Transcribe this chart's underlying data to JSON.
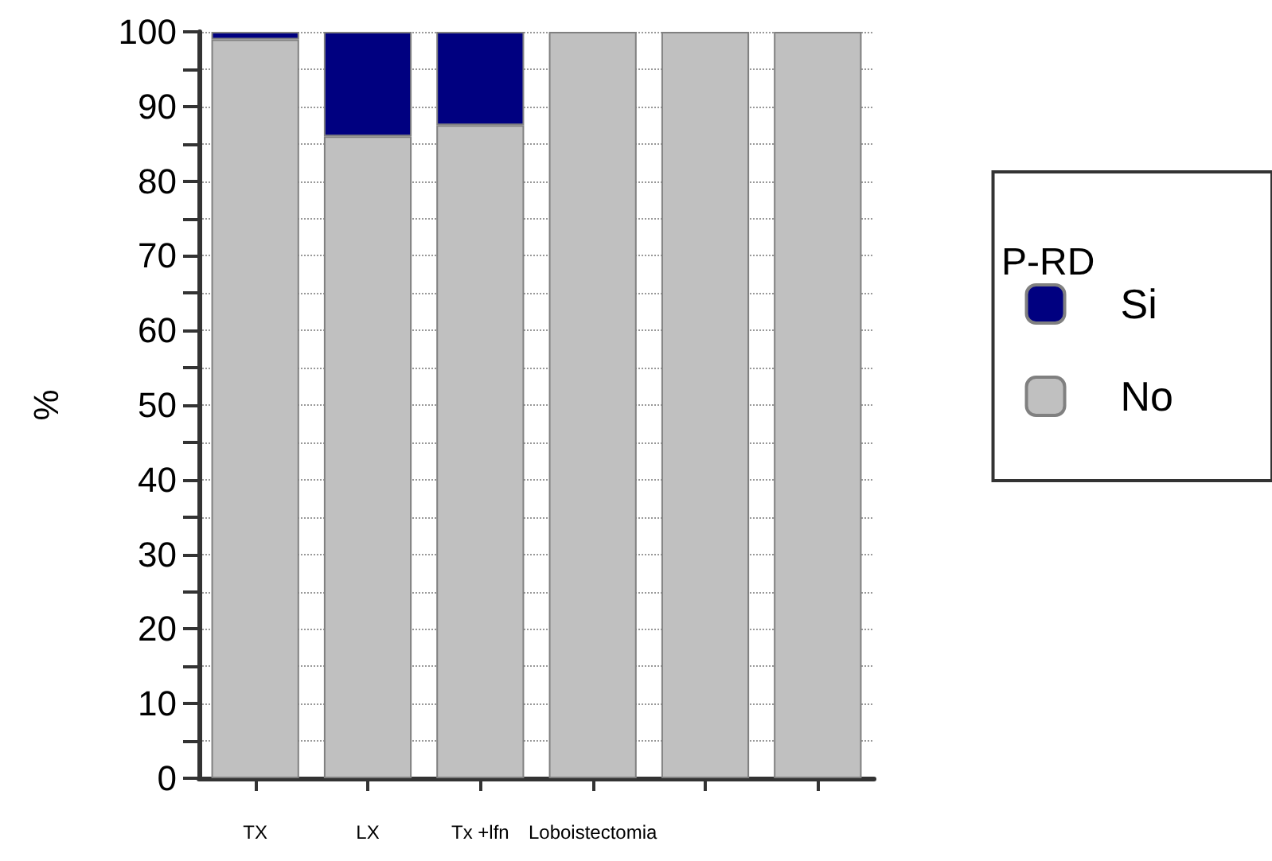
{
  "chart_data": {
    "type": "bar",
    "stacked": true,
    "ylabel": "%",
    "legend_title": "P-RD",
    "legend": "right",
    "categories": [
      "TX",
      "LX",
      "Tx +lfn",
      "Loboistectomia",
      null,
      null
    ],
    "series": [
      {
        "name": "No",
        "color": "#c0c0c0",
        "values": [
          99,
          86,
          87.5,
          100,
          100,
          100
        ]
      },
      {
        "name": "Si",
        "color": "#000080",
        "values": [
          1,
          14,
          12.5,
          0,
          0,
          0
        ]
      }
    ],
    "ylim": [
      0,
      100
    ],
    "yticks": [
      0,
      {
        "value": 5,
        "label": null
      },
      10,
      {
        "value": 15,
        "label": null
      },
      20,
      {
        "value": 25,
        "label": null
      },
      30,
      {
        "value": 35,
        "label": null
      },
      40,
      {
        "value": 45,
        "label": null
      },
      50,
      {
        "value": 55,
        "label": null
      },
      60,
      {
        "value": 65,
        "label": null
      },
      70,
      {
        "value": 75,
        "label": null
      },
      80,
      {
        "value": 85,
        "label": null
      },
      90,
      {
        "value": 95,
        "label": null
      },
      100
    ],
    "grid": "y",
    "line_style": "dotted"
  }
}
